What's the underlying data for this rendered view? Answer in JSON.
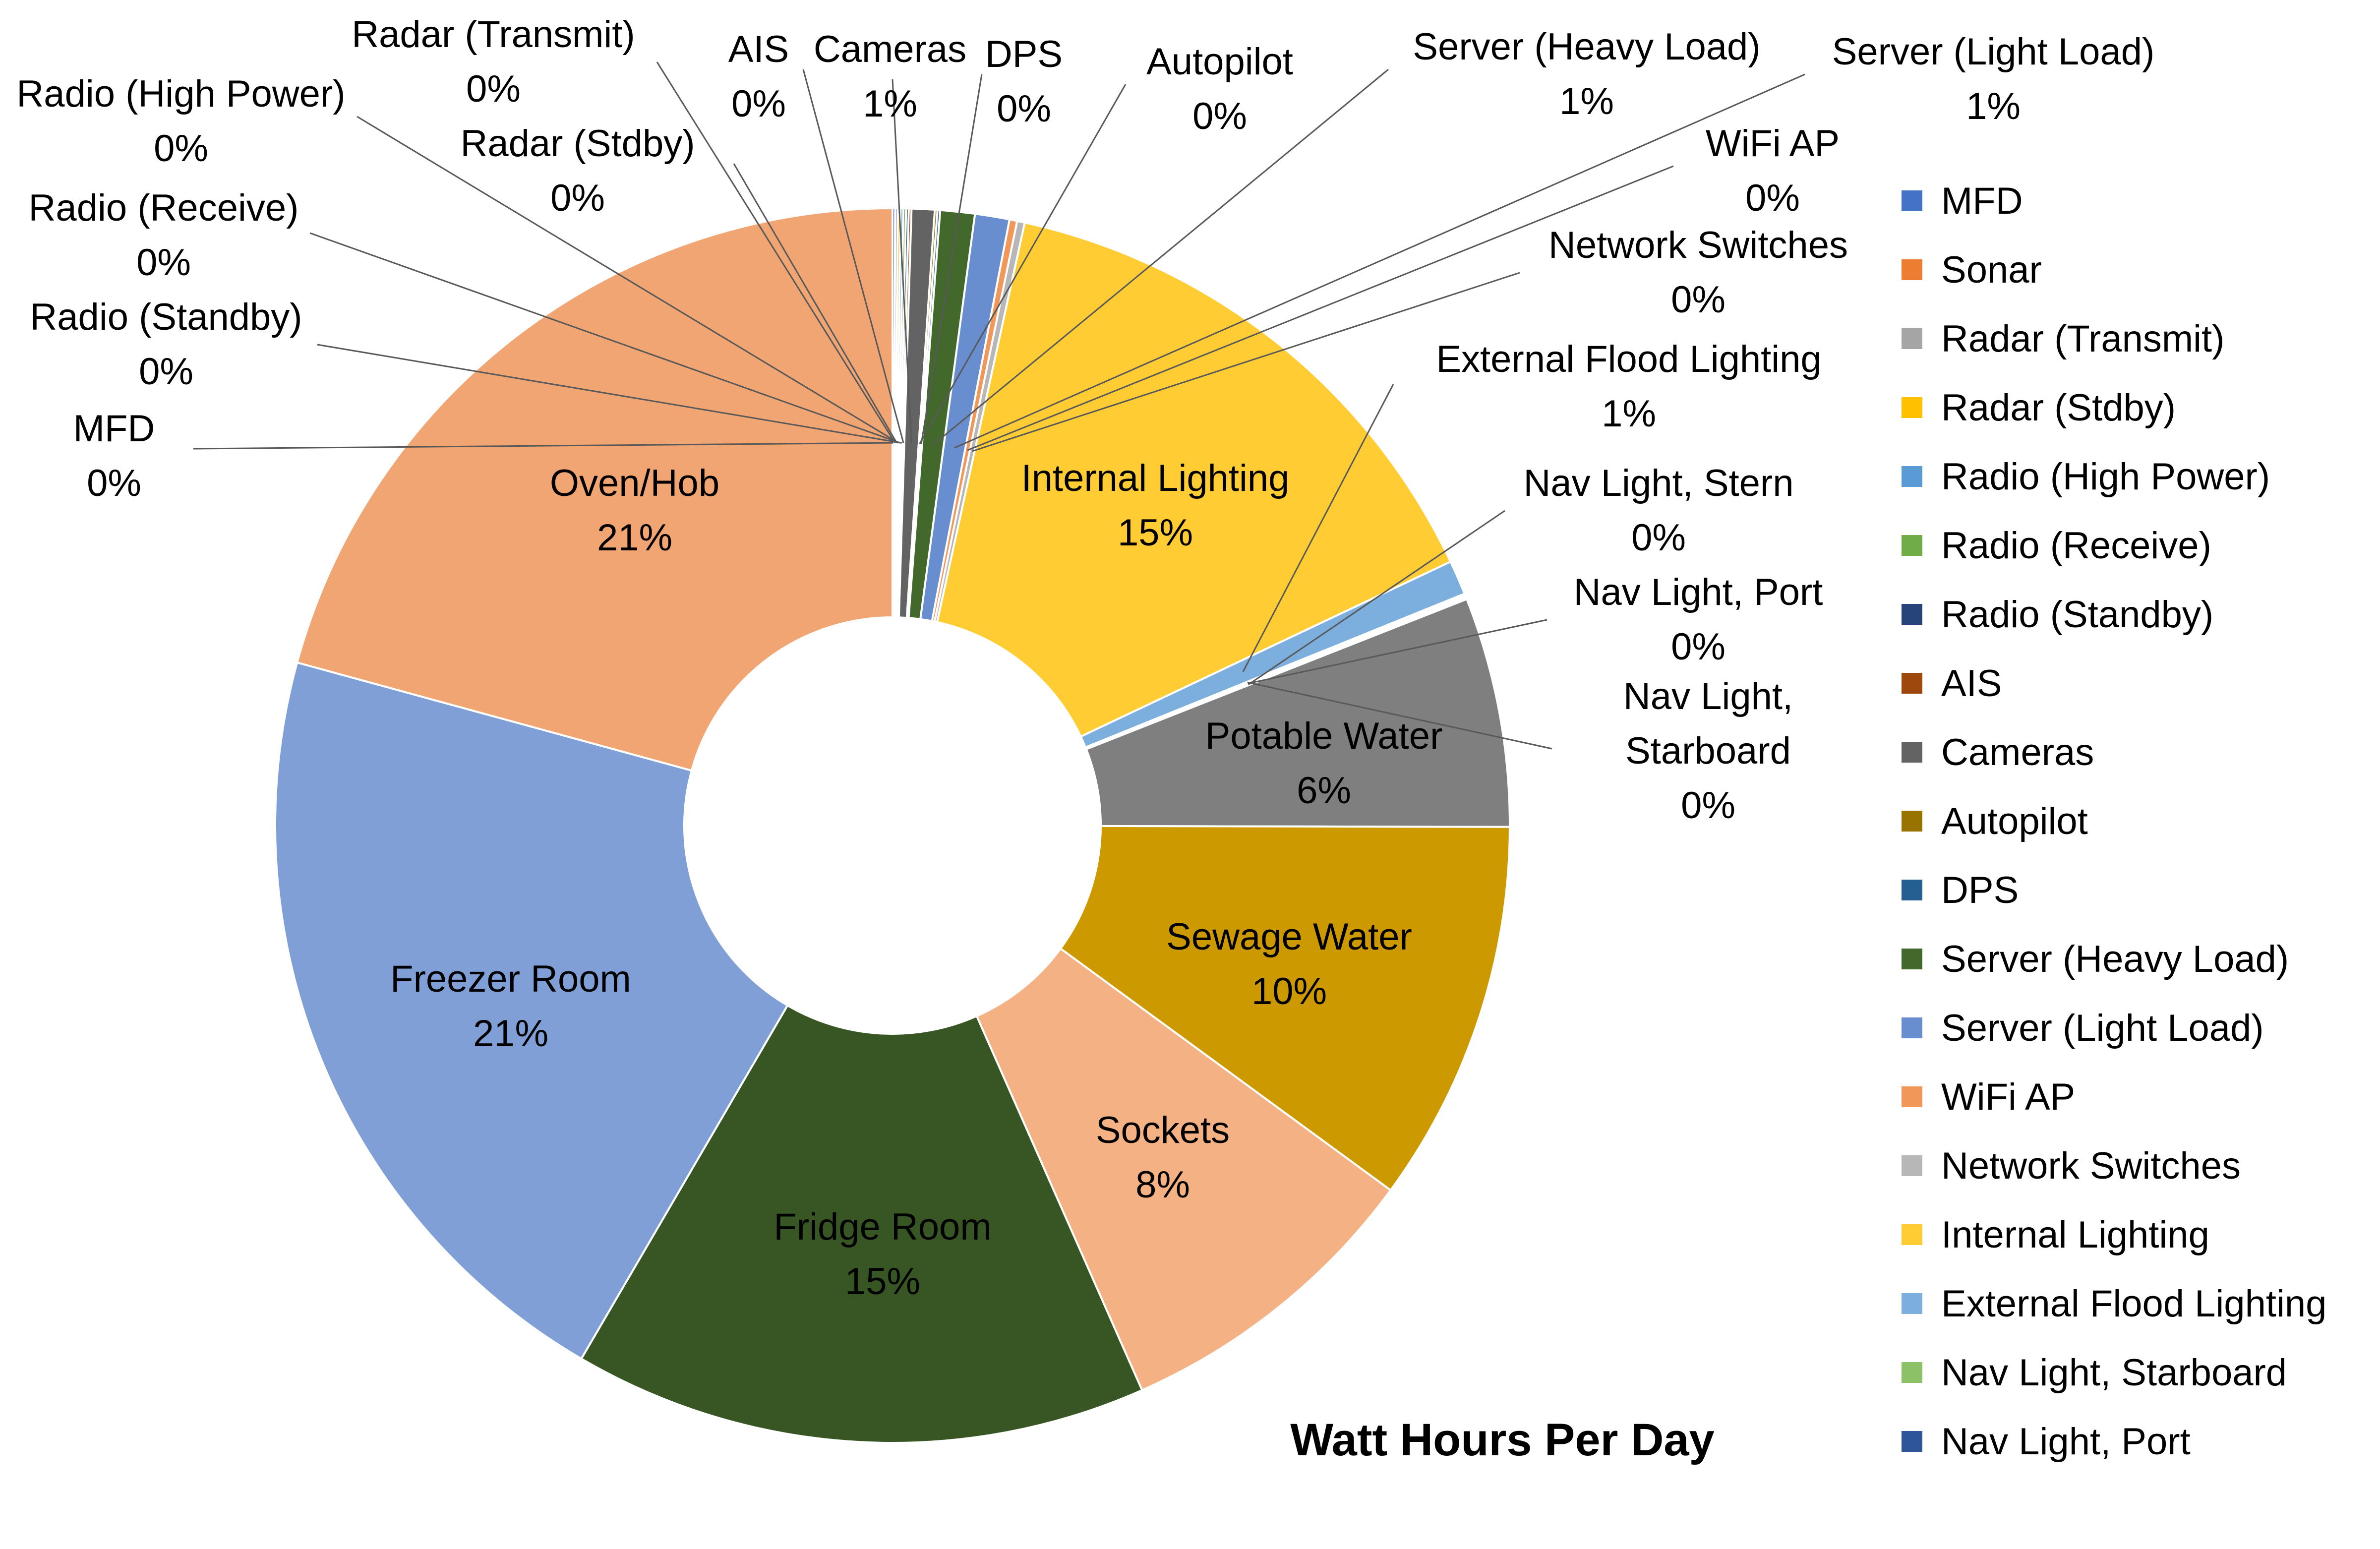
{
  "chart_data": {
    "type": "pie",
    "variant": "doughnut",
    "title": "Watt Hours Per Day",
    "legend_position": "right",
    "slices": [
      {
        "label": "MFD",
        "value": 0.07,
        "display": "0%",
        "color": "#4472C4"
      },
      {
        "label": "Sonar",
        "value": 0.0,
        "display": "",
        "color": "#ED7D31"
      },
      {
        "label": "Radar (Transmit)",
        "value": 0.07,
        "display": "0%",
        "color": "#A5A5A5"
      },
      {
        "label": "Radar (Stdby)",
        "value": 0.07,
        "display": "0%",
        "color": "#FFC000"
      },
      {
        "label": "Radio (High Power)",
        "value": 0.07,
        "display": "0%",
        "color": "#5B9BD5"
      },
      {
        "label": "Radio (Receive)",
        "value": 0.07,
        "display": "0%",
        "color": "#70AD47"
      },
      {
        "label": "Radio (Standby)",
        "value": 0.07,
        "display": "0%",
        "color": "#264478"
      },
      {
        "label": "AIS",
        "value": 0.07,
        "display": "0%",
        "color": "#9E480E"
      },
      {
        "label": "Cameras",
        "value": 0.6,
        "display": "1%",
        "color": "#636363"
      },
      {
        "label": "Autopilot",
        "value": 0.07,
        "display": "0%",
        "color": "#997300"
      },
      {
        "label": "DPS",
        "value": 0.07,
        "display": "0%",
        "color": "#255E91"
      },
      {
        "label": "Server (Heavy Load)",
        "value": 0.9,
        "display": "1%",
        "color": "#43682B"
      },
      {
        "label": "Server (Light Load)",
        "value": 0.9,
        "display": "1%",
        "color": "#698ED0"
      },
      {
        "label": "WiFi AP",
        "value": 0.2,
        "display": "0%",
        "color": "#F1975A"
      },
      {
        "label": "Network Switches",
        "value": 0.2,
        "display": "0%",
        "color": "#B7B7B7"
      },
      {
        "label": "Internal Lighting",
        "value": 14.5,
        "display": "15%",
        "color": "#FFCD33"
      },
      {
        "label": "External Flood Lighting",
        "value": 0.9,
        "display": "1%",
        "color": "#7CAFDD"
      },
      {
        "label": "Nav Light, Starboard",
        "value": 0.05,
        "display": "0%",
        "color": "#8CC168"
      },
      {
        "label": "Nav Light, Port",
        "value": 0.05,
        "display": "0%",
        "color": "#2E5597"
      },
      {
        "label": "Nav Light, Stern",
        "value": 0.05,
        "display": "0%",
        "color": "#D6D6D6"
      },
      {
        "label": "Potable Water",
        "value": 6.0,
        "display": "6%",
        "color": "#7F7F7F"
      },
      {
        "label": "Sewage Water",
        "value": 10.0,
        "display": "10%",
        "color": "#CC9A00"
      },
      {
        "label": "Sockets",
        "value": 8.3,
        "display": "8%",
        "color": "#F4B183"
      },
      {
        "label": "Fridge Room",
        "value": 15.0,
        "display": "15%",
        "color": "#375623"
      },
      {
        "label": "Freezer Room",
        "value": 20.8,
        "display": "21%",
        "color": "#7F9FD6"
      },
      {
        "label": "Oven/Hob",
        "value": 20.7,
        "display": "21%",
        "color": "#F0A572"
      }
    ],
    "legend_items": [
      "MFD",
      "Sonar",
      "Radar (Transmit)",
      "Radar (Stdby)",
      "Radio (High Power)",
      "Radio (Receive)",
      "Radio (Standby)",
      "AIS",
      "Cameras",
      "Autopilot",
      "DPS",
      "Server (Heavy Load)",
      "Server (Light Load)",
      "WiFi AP",
      "Network Switches",
      "Internal Lighting",
      "External Flood Lighting",
      "Nav Light, Starboard",
      "Nav Light, Port"
    ]
  }
}
